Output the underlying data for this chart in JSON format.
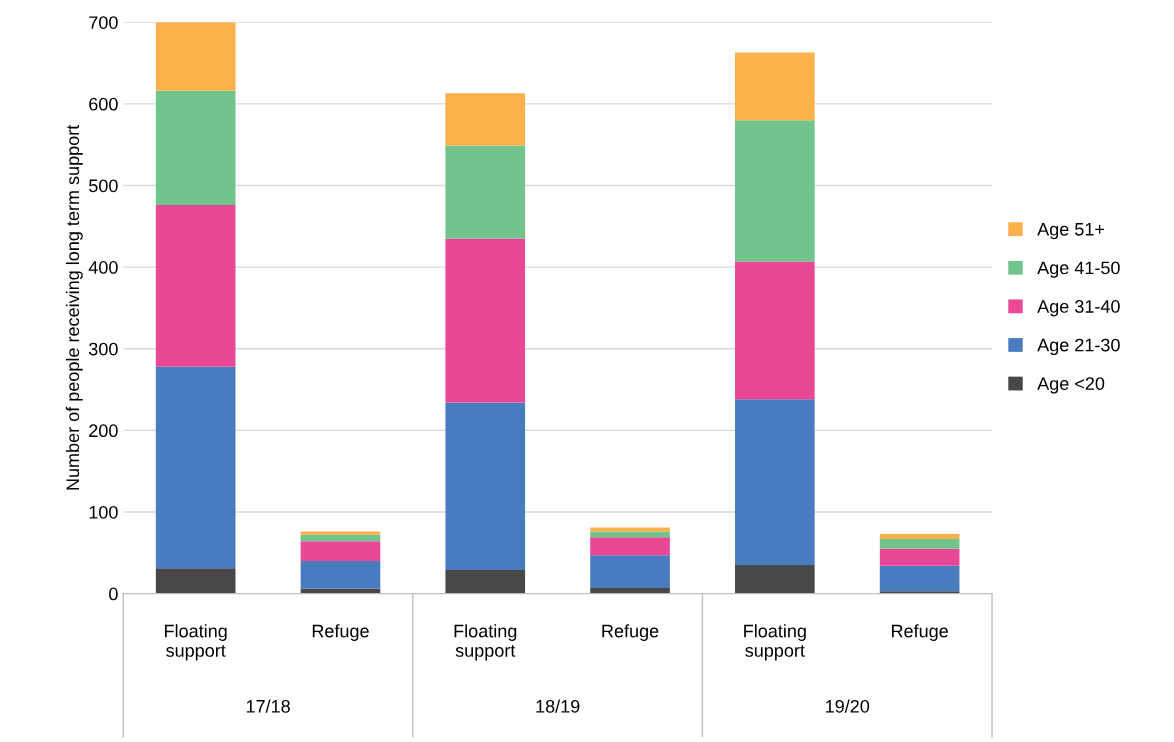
{
  "chart_data": {
    "type": "bar",
    "stacked": true,
    "ylabel": "Number of people receiving long term support",
    "categories": [
      "Floating\nsupport",
      "Refuge",
      "Floating\nsupport",
      "Refuge",
      "Floating\nsupport",
      "Refuge"
    ],
    "annotations": [
      "17/18",
      "18/19",
      "19/20"
    ],
    "series": [
      {
        "name": "Age <20",
        "color": "#484848",
        "values": [
          31,
          6,
          29,
          7,
          35,
          3
        ]
      },
      {
        "name": "Age 21-30",
        "color": "#487cbe",
        "values": [
          247,
          34,
          205,
          40,
          203,
          31
        ]
      },
      {
        "name": "Age 31-40",
        "color": "#e84896",
        "values": [
          198,
          24,
          201,
          22,
          169,
          21
        ]
      },
      {
        "name": "Age 41-50",
        "color": "#70c48c",
        "values": [
          140,
          8,
          114,
          7,
          173,
          12
        ]
      },
      {
        "name": "Age 51+",
        "color": "#fbb04a",
        "values": [
          84,
          4,
          64,
          5,
          83,
          6
        ]
      }
    ],
    "ylim": [
      0,
      700
    ],
    "yticks": [
      0,
      100,
      200,
      300,
      400,
      500,
      600,
      700
    ],
    "grid": "y",
    "legend": "right"
  }
}
